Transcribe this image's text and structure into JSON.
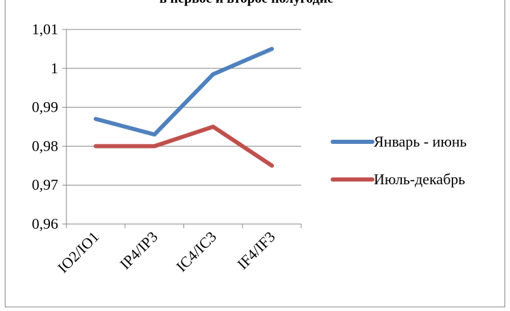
{
  "chart_data": {
    "type": "line",
    "title": "в первое и второе полугодие",
    "xlabel": "",
    "ylabel": "",
    "categories": [
      "IO2/IO1",
      "IP4/IP3",
      "IC4/IC3",
      "IF4/IF3"
    ],
    "ylim": [
      0.96,
      1.01
    ],
    "yticks": [
      "0,96",
      "0,97",
      "0,98",
      "0,99",
      "1",
      "1,01"
    ],
    "grid": true,
    "legend_position": "right",
    "series": [
      {
        "name": "Январь - июнь",
        "color": "#4f81bd",
        "values": [
          0.987,
          0.983,
          0.9985,
          1.005
        ]
      },
      {
        "name": "Июль-декабрь",
        "color": "#c0504d",
        "values": [
          0.98,
          0.98,
          0.985,
          0.975
        ]
      }
    ]
  }
}
